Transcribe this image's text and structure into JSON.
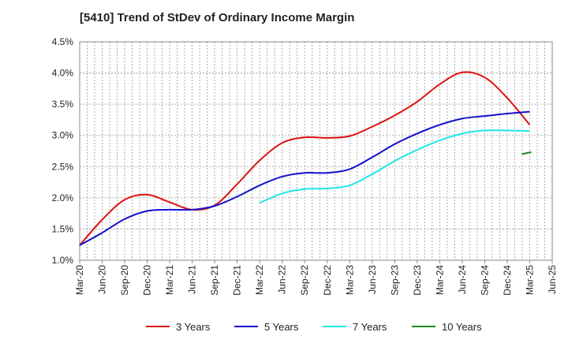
{
  "chart_data": {
    "type": "line",
    "title": "[5410]  Trend of StDev of Ordinary Income Margin",
    "xlabel": "",
    "ylabel": "",
    "x": [
      "Mar-20",
      "Jun-20",
      "Sep-20",
      "Dec-20",
      "Mar-21",
      "Jun-21",
      "Sep-21",
      "Dec-21",
      "Mar-22",
      "Jun-22",
      "Sep-22",
      "Dec-22",
      "Mar-23",
      "Jun-23",
      "Sep-23",
      "Dec-23",
      "Mar-24",
      "Jun-24",
      "Sep-24",
      "Dec-24",
      "Mar-25",
      "Jun-25"
    ],
    "ylim": [
      1.0,
      4.5
    ],
    "yticks": [
      "1.0%",
      "1.5%",
      "2.0%",
      "2.5%",
      "3.0%",
      "3.5%",
      "4.0%",
      "4.5%"
    ],
    "grid": true,
    "legend_position": "bottom",
    "series": [
      {
        "name": "3 Years",
        "color": "#dd1111",
        "values": [
          1.24,
          1.65,
          1.97,
          2.05,
          1.93,
          1.81,
          1.88,
          2.22,
          2.6,
          2.88,
          2.97,
          2.96,
          2.99,
          3.14,
          3.32,
          3.54,
          3.82,
          4.01,
          3.93,
          3.6,
          3.17,
          null
        ]
      },
      {
        "name": "5 Years",
        "color": "#1111cc",
        "values": [
          1.24,
          1.44,
          1.66,
          1.79,
          1.81,
          1.81,
          1.87,
          2.02,
          2.2,
          2.34,
          2.4,
          2.4,
          2.46,
          2.65,
          2.86,
          3.03,
          3.17,
          3.27,
          3.31,
          3.35,
          3.38,
          null
        ]
      },
      {
        "name": "7 Years",
        "color": "#22e5e5",
        "values": [
          null,
          null,
          null,
          null,
          null,
          null,
          null,
          null,
          1.92,
          2.07,
          2.14,
          2.15,
          2.2,
          2.38,
          2.59,
          2.77,
          2.92,
          3.03,
          3.08,
          3.08,
          3.07,
          null
        ]
      },
      {
        "name": "10 Years",
        "color": "#228822",
        "values": [
          null,
          null,
          null,
          null,
          null,
          null,
          null,
          null,
          null,
          null,
          null,
          null,
          null,
          null,
          null,
          null,
          null,
          null,
          null,
          null,
          2.72,
          null
        ]
      }
    ]
  }
}
